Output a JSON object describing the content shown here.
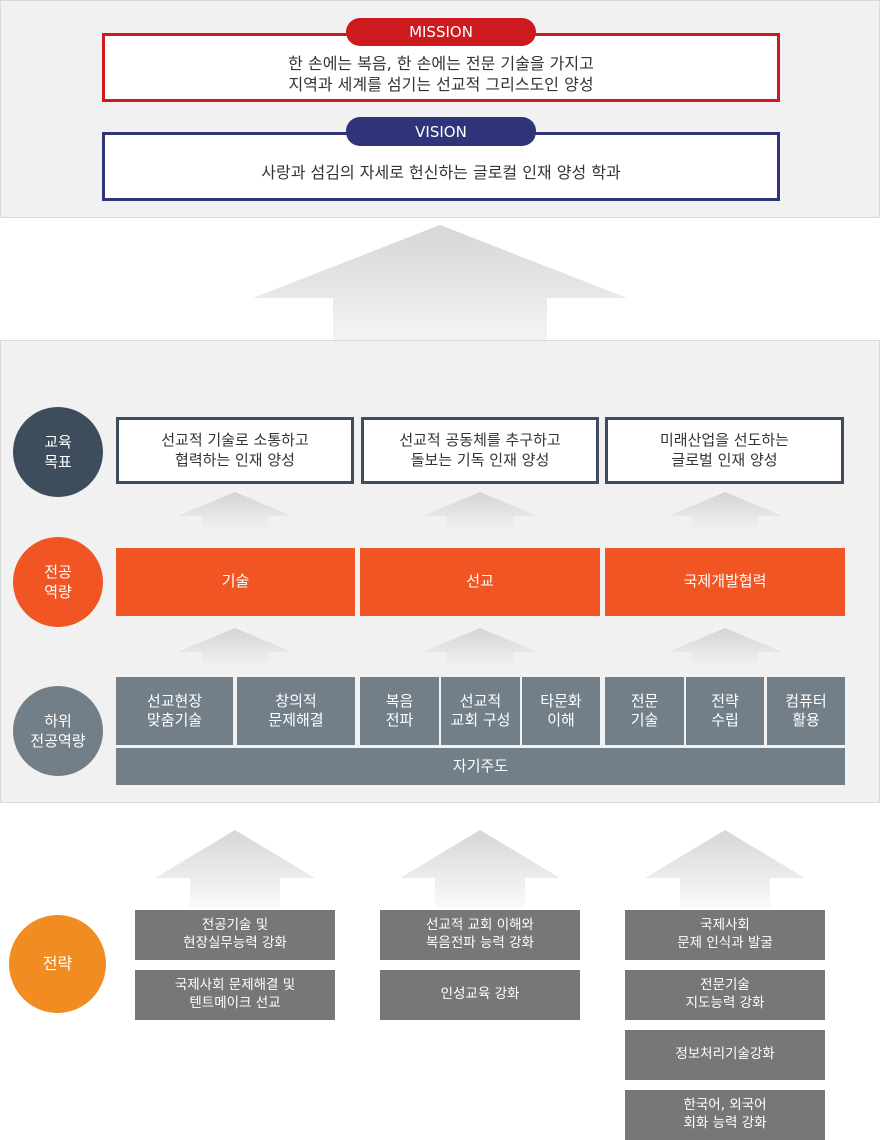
{
  "colors": {
    "mission": "#cc1a1f",
    "vision": "#303579",
    "goal": "#3e4d5b",
    "competency": "#f05523",
    "sub": "#737f88",
    "strategy": "#f08c22",
    "strategy_box": "#777777"
  },
  "mission": {
    "label": "MISSION",
    "text": "한 손에는 복음, 한 손에는 전문 기술을 가지고\n지역과 세계를 섬기는 선교적 그리스도인 양성"
  },
  "vision": {
    "label": "VISION",
    "text": "사랑과 섬김의 자세로 헌신하는 글로컬 인재 양성 학과"
  },
  "rows": {
    "goal": {
      "label": "교육\n목표",
      "items": [
        "선교적 기술로 소통하고\n협력하는 인재 양성",
        "선교적 공동체를 추구하고\n돌보는 기독 인재 양성",
        "미래산업을 선도하는\n글로벌 인재 양성"
      ]
    },
    "competency": {
      "label": "전공\n역량",
      "items": [
        "기술",
        "선교",
        "국제개발협력"
      ]
    },
    "sub": {
      "label": "하위\n전공역량",
      "items": [
        "선교현장\n맞춤기술",
        "창의적\n문제해결",
        "복음\n전파",
        "선교적\n교회 구성",
        "타문화\n이해",
        "전문\n기술",
        "전략\n수립",
        "컴퓨터\n활용"
      ],
      "common": "자기주도"
    },
    "strategy": {
      "label": "전략",
      "columns": [
        [
          "전공기술 및\n현장실무능력 강화",
          "국제사회 문제해결 및\n텐트메이크 선교"
        ],
        [
          "선교적 교회 이해와\n복음전파 능력 강화",
          "인성교육 강화"
        ],
        [
          "국제사회\n문제 인식과 발굴",
          "전문기술\n지도능력 강화",
          "정보처리기술강화",
          "한국어, 외국어\n회화 능력 강화"
        ]
      ]
    }
  }
}
